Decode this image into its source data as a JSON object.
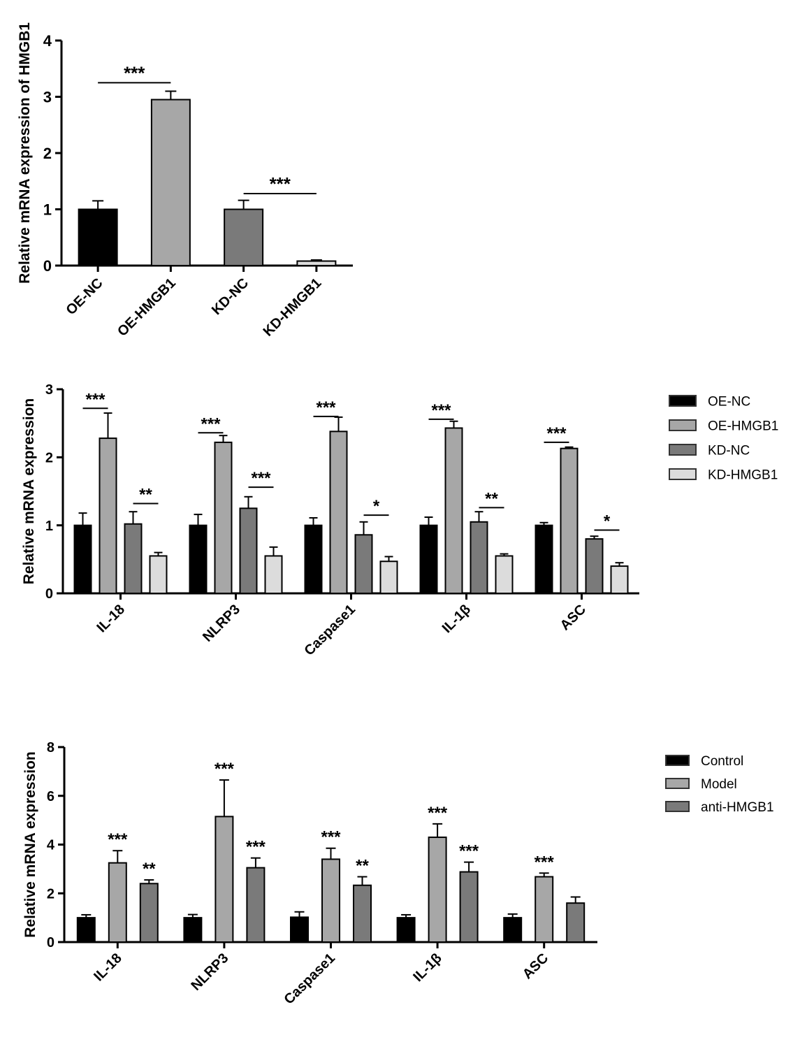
{
  "figure": {
    "background": "#ffffff",
    "description": "Three GraphPad-style grouped bar charts of relative mRNA expression with SD error bars and significance asterisks"
  },
  "colors": {
    "black": "#000000",
    "gray_light": "#a7a7a7",
    "gray_dark": "#7a7a7a",
    "gray_pale": "#dcdcdc",
    "axis": "#000000",
    "legend_swatch_border": "#333333"
  },
  "chart_data": [
    {
      "id": "hmgb1-panel",
      "type": "bar",
      "title": "",
      "xlabel": "",
      "ylabel": "Relative mRNA expression of HMGB1",
      "ylim": [
        0,
        4
      ],
      "yticks": [
        0,
        1,
        2,
        3,
        4
      ],
      "grid": false,
      "legend": null,
      "categories": [
        "OE-NC",
        "OE-HMGB1",
        "KD-NC",
        "KD-HMGB1"
      ],
      "bar_colors": [
        "#000000",
        "#a7a7a7",
        "#7a7a7a",
        "#dcdcdc"
      ],
      "series": [
        {
          "name": "HMGB1",
          "values": [
            1.0,
            2.95,
            1.0,
            0.08
          ],
          "errors": [
            0.15,
            0.15,
            0.16,
            0.02
          ]
        }
      ],
      "significance_brackets": [
        {
          "a": 0,
          "b": 1,
          "y": 3.25,
          "label": "***"
        },
        {
          "a": 2,
          "b": 3,
          "y": 1.28,
          "label": "***"
        }
      ]
    },
    {
      "id": "oe-kd-panel",
      "type": "bar",
      "title": "",
      "xlabel": "",
      "ylabel": "Relative mRNA expression",
      "ylim": [
        0,
        3
      ],
      "yticks": [
        0,
        1,
        2,
        3
      ],
      "grid": false,
      "legend": {
        "position": "right",
        "labels": [
          "OE-NC",
          "OE-HMGB1",
          "KD-NC",
          "KD-HMGB1"
        ]
      },
      "categories": [
        "IL-18",
        "NLRP3",
        "Caspase1",
        "IL-1β",
        "ASC"
      ],
      "series": [
        {
          "name": "OE-NC",
          "color": "#000000",
          "values": [
            1.0,
            1.0,
            1.0,
            1.0,
            1.0
          ],
          "errors": [
            0.18,
            0.16,
            0.11,
            0.12,
            0.04
          ]
        },
        {
          "name": "OE-HMGB1",
          "color": "#a7a7a7",
          "values": [
            2.28,
            2.22,
            2.38,
            2.43,
            2.13
          ],
          "errors": [
            0.37,
            0.1,
            0.21,
            0.1,
            0.02
          ]
        },
        {
          "name": "KD-NC",
          "color": "#7a7a7a",
          "values": [
            1.02,
            1.25,
            0.86,
            1.05,
            0.8
          ],
          "errors": [
            0.18,
            0.17,
            0.19,
            0.15,
            0.04
          ]
        },
        {
          "name": "KD-HMGB1",
          "color": "#dcdcdc",
          "values": [
            0.55,
            0.55,
            0.47,
            0.55,
            0.4
          ],
          "errors": [
            0.05,
            0.13,
            0.07,
            0.03,
            0.05
          ]
        }
      ],
      "significance_brackets": [
        {
          "group": 0,
          "a": 0,
          "b": 1,
          "y": 2.72,
          "label": "***"
        },
        {
          "group": 0,
          "a": 2,
          "b": 3,
          "y": 1.32,
          "label": "**"
        },
        {
          "group": 1,
          "a": 0,
          "b": 1,
          "y": 2.36,
          "label": "***"
        },
        {
          "group": 1,
          "a": 2,
          "b": 3,
          "y": 1.56,
          "label": "***"
        },
        {
          "group": 2,
          "a": 0,
          "b": 1,
          "y": 2.6,
          "label": "***"
        },
        {
          "group": 2,
          "a": 2,
          "b": 3,
          "y": 1.15,
          "label": "*"
        },
        {
          "group": 3,
          "a": 0,
          "b": 1,
          "y": 2.56,
          "label": "***"
        },
        {
          "group": 3,
          "a": 2,
          "b": 3,
          "y": 1.26,
          "label": "**"
        },
        {
          "group": 4,
          "a": 0,
          "b": 1,
          "y": 2.22,
          "label": "***"
        },
        {
          "group": 4,
          "a": 2,
          "b": 3,
          "y": 0.93,
          "label": "*"
        }
      ]
    },
    {
      "id": "treatment-panel",
      "type": "bar",
      "title": "",
      "xlabel": "",
      "ylabel": "Relative mRNA expression",
      "ylim": [
        0,
        8
      ],
      "yticks": [
        0,
        2,
        4,
        6,
        8
      ],
      "grid": false,
      "legend": {
        "position": "right",
        "labels": [
          "Control",
          "Model",
          "anti-HMGB1"
        ]
      },
      "categories": [
        "IL-18",
        "NLRP3",
        "Caspase1",
        "IL-1β",
        "ASC"
      ],
      "series": [
        {
          "name": "Control",
          "color": "#000000",
          "values": [
            1.0,
            1.0,
            1.02,
            1.0,
            1.0
          ],
          "errors": [
            0.12,
            0.13,
            0.22,
            0.12,
            0.15
          ]
        },
        {
          "name": "Model",
          "color": "#a7a7a7",
          "values": [
            3.25,
            5.15,
            3.4,
            4.3,
            2.68
          ],
          "errors": [
            0.5,
            1.5,
            0.45,
            0.55,
            0.15
          ]
        },
        {
          "name": "anti-HMGB1",
          "color": "#7a7a7a",
          "values": [
            2.4,
            3.05,
            2.33,
            2.88,
            1.6
          ],
          "errors": [
            0.15,
            0.4,
            0.35,
            0.4,
            0.25
          ]
        }
      ],
      "significance_stars": [
        {
          "group": 0,
          "series": 1,
          "label": "***"
        },
        {
          "group": 0,
          "series": 2,
          "label": "**"
        },
        {
          "group": 1,
          "series": 1,
          "label": "***"
        },
        {
          "group": 1,
          "series": 2,
          "label": "***"
        },
        {
          "group": 2,
          "series": 1,
          "label": "***"
        },
        {
          "group": 2,
          "series": 2,
          "label": "**"
        },
        {
          "group": 3,
          "series": 1,
          "label": "***"
        },
        {
          "group": 3,
          "series": 2,
          "label": "***"
        },
        {
          "group": 4,
          "series": 1,
          "label": "***"
        }
      ]
    }
  ]
}
